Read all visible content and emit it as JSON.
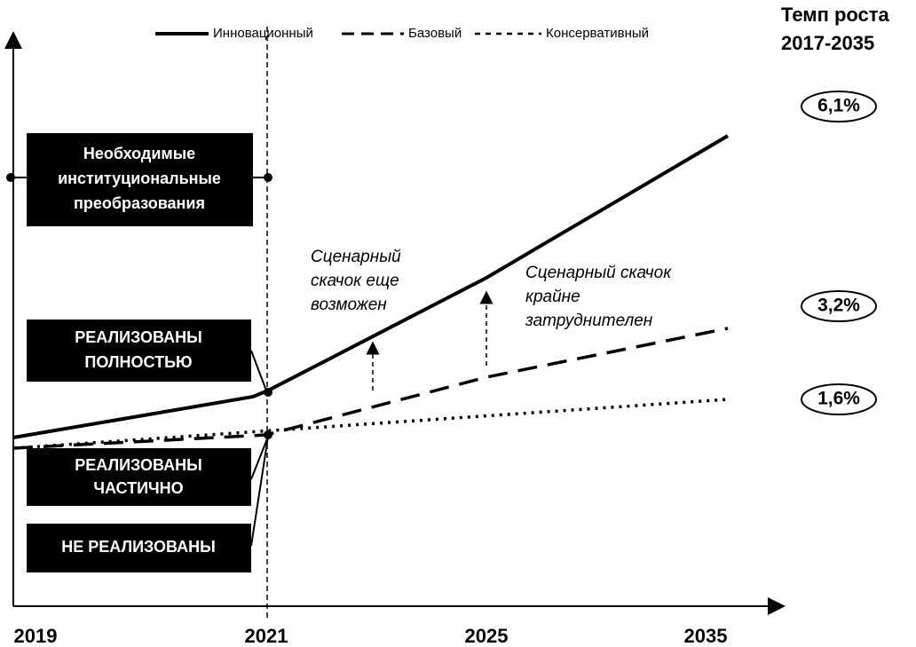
{
  "legend": [
    "Инновационный",
    "Базовый",
    "Консервативный"
  ],
  "rate_header": [
    "Темп роста",
    "2017-2035"
  ],
  "rates": [
    "6,1%",
    "3,2%",
    "1,6%"
  ],
  "years": [
    "2019",
    "2021",
    "2025",
    "2035"
  ],
  "boxes": [
    [
      "Необходимые",
      "институциональные",
      "преобразования"
    ],
    [
      "РЕАЛИЗОВАНЫ",
      "ПОЛНОСТЬЮ"
    ],
    [
      "РЕАЛИЗОВАНЫ",
      "ЧАСТИЧНО"
    ],
    [
      "НЕ РЕАЛИЗОВАНЫ"
    ]
  ],
  "annotations": [
    [
      "Сценарный",
      "скачок еще",
      "возможен"
    ],
    [
      "Сценарный скачок",
      "крайне",
      "затруднителен"
    ]
  ]
}
